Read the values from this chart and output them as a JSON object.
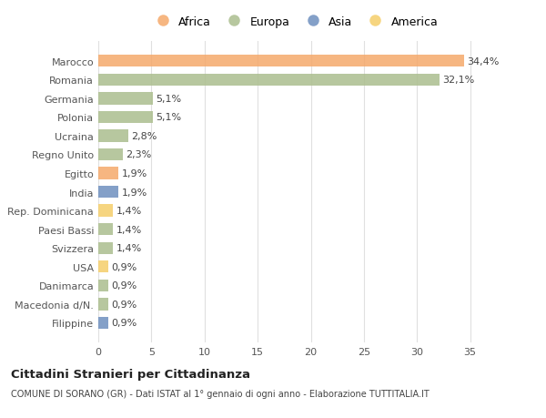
{
  "categories": [
    "Marocco",
    "Romania",
    "Germania",
    "Polonia",
    "Ucraina",
    "Regno Unito",
    "Egitto",
    "India",
    "Rep. Dominicana",
    "Paesi Bassi",
    "Svizzera",
    "USA",
    "Danimarca",
    "Macedonia d/N.",
    "Filippine"
  ],
  "values": [
    34.4,
    32.1,
    5.1,
    5.1,
    2.8,
    2.3,
    1.9,
    1.9,
    1.4,
    1.4,
    1.4,
    0.9,
    0.9,
    0.9,
    0.9
  ],
  "labels": [
    "34,4%",
    "32,1%",
    "5,1%",
    "5,1%",
    "2,8%",
    "2,3%",
    "1,9%",
    "1,9%",
    "1,4%",
    "1,4%",
    "1,4%",
    "0,9%",
    "0,9%",
    "0,9%",
    "0,9%"
  ],
  "continents": [
    "Africa",
    "Europa",
    "Europa",
    "Europa",
    "Europa",
    "Europa",
    "Africa",
    "Asia",
    "America",
    "Europa",
    "Europa",
    "America",
    "Europa",
    "Europa",
    "Asia"
  ],
  "colors": {
    "Africa": "#F5A96B",
    "Europa": "#ABBE8E",
    "Asia": "#6E8FBF",
    "America": "#F5CE6A"
  },
  "legend_order": [
    "Africa",
    "Europa",
    "Asia",
    "America"
  ],
  "title": "Cittadini Stranieri per Cittadinanza",
  "subtitle": "COMUNE DI SORANO (GR) - Dati ISTAT al 1° gennaio di ogni anno - Elaborazione TUTTITALIA.IT",
  "xlim": [
    0,
    37
  ],
  "xticks": [
    0,
    5,
    10,
    15,
    20,
    25,
    30,
    35
  ],
  "background_color": "#ffffff",
  "grid_color": "#e0e0e0"
}
